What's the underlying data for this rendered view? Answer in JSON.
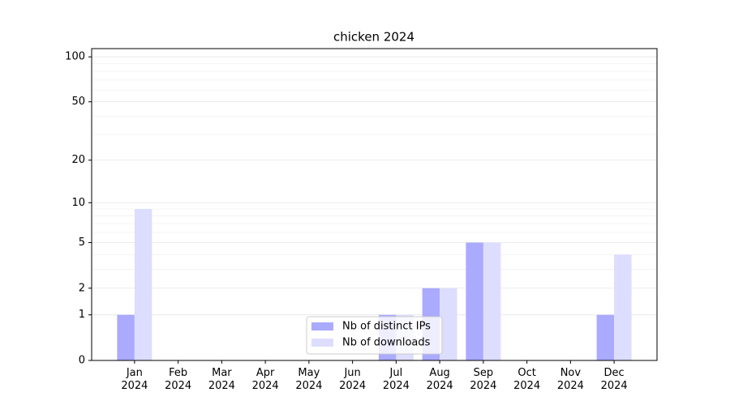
{
  "chart_data": {
    "type": "bar",
    "title": "chicken 2024",
    "categories": [
      "Jan\n2024",
      "Feb\n2024",
      "Mar\n2024",
      "Apr\n2024",
      "May\n2024",
      "Jun\n2024",
      "Jul\n2024",
      "Aug\n2024",
      "Sep\n2024",
      "Oct\n2024",
      "Nov\n2024",
      "Dec\n2024"
    ],
    "series": [
      {
        "name": "Nb of distinct IPs",
        "color": "#aaaaff",
        "values": [
          1,
          0,
          0,
          0,
          0,
          0,
          1,
          2,
          5,
          0,
          0,
          1
        ]
      },
      {
        "name": "Nb of downloads",
        "color": "#ddddff",
        "values": [
          9,
          0,
          0,
          0,
          0,
          0,
          1,
          2,
          5,
          0,
          0,
          4
        ]
      }
    ],
    "yscale": "log1p",
    "ylim": [
      0,
      113.5
    ],
    "yticks": [
      0,
      1,
      2,
      5,
      10,
      20,
      50,
      100
    ],
    "yminorticks": [
      3,
      4,
      6,
      7,
      8,
      9,
      30,
      40,
      60,
      70,
      80,
      90
    ],
    "grid": true,
    "legend": "lower center"
  }
}
